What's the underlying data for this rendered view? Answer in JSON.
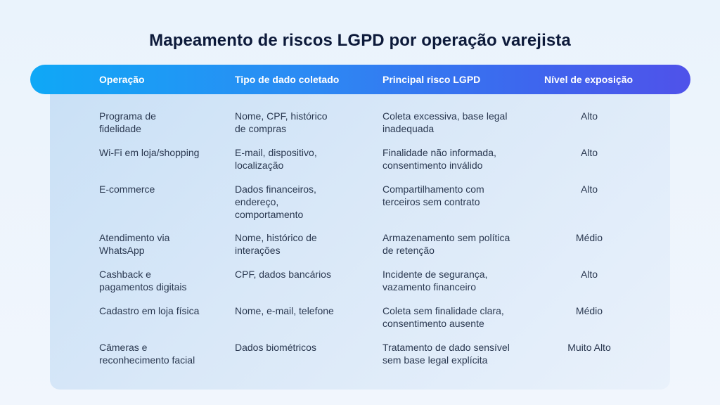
{
  "title": "Mapeamento de riscos LGPD por operação varejista",
  "headers": {
    "operacao": "Operação",
    "tipo": "Tipo de dado coletado",
    "risco": "Principal risco LGPD",
    "nivel": "Nível de exposição"
  },
  "rows": [
    {
      "operacao": [
        "Programa de",
        "fidelidade"
      ],
      "tipo": [
        "Nome, CPF, histórico",
        "de compras"
      ],
      "risco": [
        "Coleta excessiva, base legal",
        "inadequada"
      ],
      "nivel": "Alto"
    },
    {
      "operacao": [
        "Wi-Fi em loja/shopping"
      ],
      "tipo": [
        "E-mail, dispositivo,",
        "localização"
      ],
      "risco": [
        "Finalidade não informada,",
        "consentimento inválido"
      ],
      "nivel": "Alto"
    },
    {
      "operacao": [
        "E-commerce"
      ],
      "tipo": [
        "Dados financeiros,",
        "endereço,",
        "comportamento"
      ],
      "risco": [
        "Compartilhamento com",
        "terceiros sem contrato"
      ],
      "nivel": "Alto"
    },
    {
      "operacao": [
        "Atendimento via",
        "WhatsApp"
      ],
      "tipo": [
        "Nome, histórico de",
        "interações"
      ],
      "risco": [
        "Armazenamento sem política",
        "de retenção"
      ],
      "nivel": "Médio"
    },
    {
      "operacao": [
        "Cashback e",
        "pagamentos digitais"
      ],
      "tipo": [
        "CPF, dados bancários"
      ],
      "risco": [
        "Incidente de segurança,",
        "vazamento financeiro"
      ],
      "nivel": "Alto"
    },
    {
      "operacao": [
        "Cadastro em loja física"
      ],
      "tipo": [
        "Nome, e-mail, telefone"
      ],
      "risco": [
        "Coleta sem finalidade clara,",
        "consentimento ausente"
      ],
      "nivel": "Médio"
    },
    {
      "operacao": [
        "Câmeras e",
        "reconhecimento facial"
      ],
      "tipo": [
        "Dados biométricos"
      ],
      "risco": [
        "Tratamento de dado sensível",
        "sem base legal explícita"
      ],
      "nivel": "Muito Alto"
    }
  ]
}
